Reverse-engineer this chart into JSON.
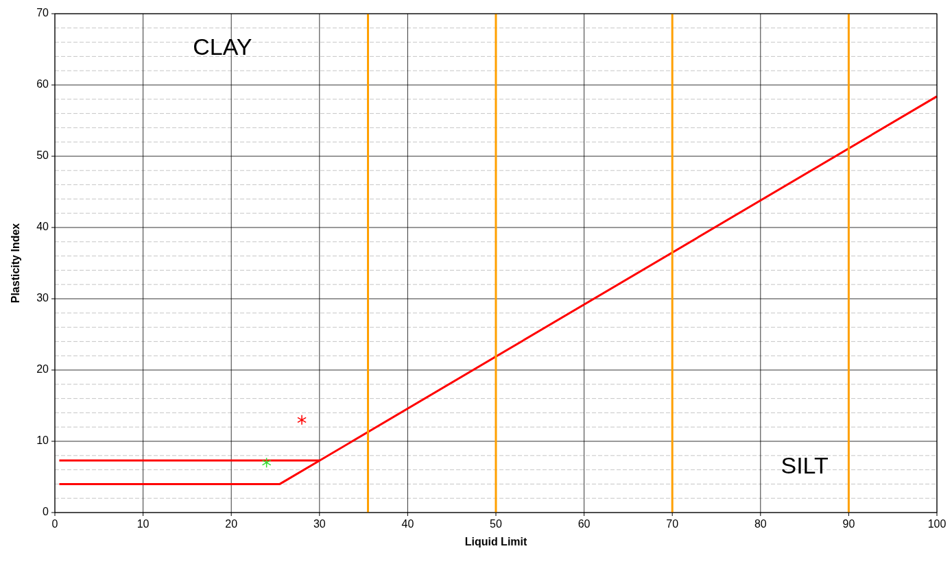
{
  "chart_data": {
    "type": "line",
    "xlabel": "Liquid Limit",
    "ylabel": "Plasticity Index",
    "xlim": [
      0,
      100
    ],
    "ylim": [
      0,
      70
    ],
    "xticks": [
      0,
      10,
      20,
      30,
      40,
      50,
      60,
      70,
      80,
      90,
      100
    ],
    "yticks": [
      0,
      {
        "value": 2,
        "label": null
      },
      {
        "value": 4,
        "label": null
      },
      {
        "value": 6,
        "label": null
      },
      {
        "value": 8,
        "label": null
      },
      10,
      {
        "value": 12,
        "label": null
      },
      {
        "value": 14,
        "label": null
      },
      {
        "value": 16,
        "label": null
      },
      {
        "value": 18,
        "label": null
      },
      20,
      {
        "value": 22,
        "label": null
      },
      {
        "value": 24,
        "label": null
      },
      {
        "value": 26,
        "label": null
      },
      {
        "value": 28,
        "label": null
      },
      30,
      {
        "value": 32,
        "label": null
      },
      {
        "value": 34,
        "label": null
      },
      {
        "value": 36,
        "label": null
      },
      {
        "value": 38,
        "label": null
      },
      40,
      {
        "value": 42,
        "label": null
      },
      {
        "value": 44,
        "label": null
      },
      {
        "value": 46,
        "label": null
      },
      {
        "value": 48,
        "label": null
      },
      50,
      {
        "value": 52,
        "label": null
      },
      {
        "value": 54,
        "label": null
      },
      {
        "value": 56,
        "label": null
      },
      {
        "value": 58,
        "label": null
      },
      60,
      {
        "value": 62,
        "label": null
      },
      {
        "value": 64,
        "label": null
      },
      {
        "value": 66,
        "label": null
      },
      {
        "value": 68,
        "label": null
      },
      70
    ],
    "grid": true,
    "marker": "none",
    "line_style": "solid",
    "series": [
      {
        "color": "#ff0000",
        "x": [
          0.5,
          25.5,
          100
        ],
        "values": [
          4,
          4,
          58.4
        ]
      },
      {
        "color": "#ff0000",
        "x": [
          0.5,
          30
        ],
        "values": [
          7.3,
          7.3
        ]
      },
      {
        "color": "#ffa000",
        "x": [
          35.5,
          35.5
        ],
        "values": [
          0,
          70
        ]
      },
      {
        "color": "#ffa000",
        "x": [
          50,
          50
        ],
        "values": [
          0,
          70
        ]
      },
      {
        "color": "#ffa000",
        "x": [
          70,
          70
        ],
        "values": [
          0,
          70
        ]
      },
      {
        "color": "#ffa000",
        "x": [
          90,
          90
        ],
        "values": [
          0,
          70
        ]
      },
      {
        "type": "scatter",
        "marker": "cross",
        "color": "#ff0000",
        "x": [
          28
        ],
        "values": [
          13
        ]
      },
      {
        "type": "scatter",
        "marker": "cross",
        "color": "#33dd33",
        "x": [
          24
        ],
        "values": [
          7
        ]
      }
    ],
    "annotations": [
      "CLAY",
      "SILT"
    ]
  }
}
